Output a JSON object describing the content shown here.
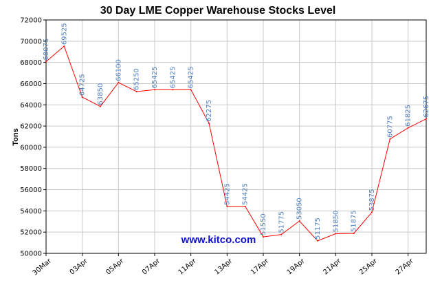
{
  "chart_data": {
    "type": "line",
    "title": "30 Day LME Copper Warehouse Stocks Level",
    "ylabel": "Tons",
    "xlabel": "",
    "watermark": "www.kitco.com",
    "ylim": [
      50000,
      72000
    ],
    "yticks": [
      50000,
      52000,
      54000,
      56000,
      58000,
      60000,
      62000,
      64000,
      66000,
      68000,
      70000,
      72000
    ],
    "xtick_labels": [
      "30Mar",
      "03Apr",
      "05Apr",
      "07Apr",
      "11Apr",
      "13Apr",
      "17Apr",
      "19Apr",
      "21Apr",
      "25Apr",
      "27Apr"
    ],
    "xtick_positions": [
      0,
      2,
      4,
      6,
      8,
      10,
      12,
      14,
      16,
      18,
      20
    ],
    "grid": true,
    "line_color": "#ff0000",
    "label_color": "#4f7fc0",
    "points": [
      {
        "x": 0,
        "y": 68075,
        "label": "68075"
      },
      {
        "x": 1,
        "y": 69525,
        "label": "69525"
      },
      {
        "x": 2,
        "y": 64725,
        "label": "64725"
      },
      {
        "x": 3,
        "y": 63850,
        "label": "63850"
      },
      {
        "x": 4,
        "y": 66100,
        "label": "66100"
      },
      {
        "x": 5,
        "y": 65250,
        "label": "65250"
      },
      {
        "x": 6,
        "y": 65425,
        "label": "65425"
      },
      {
        "x": 7,
        "y": 65425,
        "label": "65425"
      },
      {
        "x": 8,
        "y": 65425,
        "label": "65425"
      },
      {
        "x": 9,
        "y": 62275,
        "label": "62275"
      },
      {
        "x": 10,
        "y": 54425,
        "label": "54425"
      },
      {
        "x": 11,
        "y": 54425,
        "label": "54425"
      },
      {
        "x": 12,
        "y": 51550,
        "label": "51550"
      },
      {
        "x": 13,
        "y": 51775,
        "label": "51775"
      },
      {
        "x": 14,
        "y": 53050,
        "label": "53050"
      },
      {
        "x": 15,
        "y": 51175,
        "label": "51175"
      },
      {
        "x": 16,
        "y": 51850,
        "label": "51850"
      },
      {
        "x": 17,
        "y": 51875,
        "label": "51875"
      },
      {
        "x": 18,
        "y": 53875,
        "label": "53875"
      },
      {
        "x": 19,
        "y": 60775,
        "label": "60775"
      },
      {
        "x": 20,
        "y": 61825,
        "label": "61825"
      },
      {
        "x": 21,
        "y": 62675,
        "label": "62675"
      }
    ]
  }
}
